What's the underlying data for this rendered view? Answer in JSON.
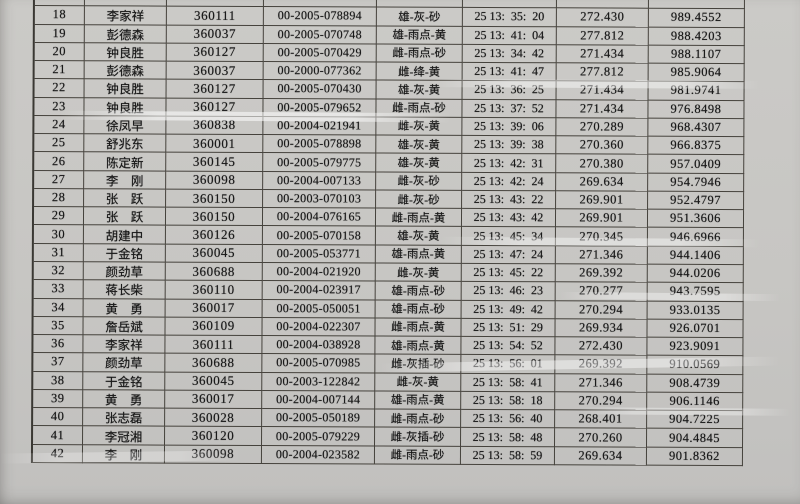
{
  "document": {
    "kind": "scanned race result sheet",
    "colors": {
      "paper": "#c8c7c4",
      "ink": "#191919",
      "table_border": "#45423c"
    },
    "table": {
      "first_visible_row_no": "18",
      "last_visible_row_no": "42",
      "rows": [
        [
          "18",
          "李家祥",
          "360111",
          "00-2005-078894",
          "雄-灰-砂",
          "25 13:  35:  20",
          "272.430",
          "989.4552"
        ],
        [
          "19",
          "彭德森",
          "360037",
          "00-2005-070748",
          "雄-雨点-黄",
          "25 13:  41:  04",
          "277.812",
          "988.4203"
        ],
        [
          "20",
          "钟良胜",
          "360127",
          "00-2005-070429",
          "雌-雨点-砂",
          "25 13:  34:  42",
          "271.434",
          "988.1107"
        ],
        [
          "21",
          "彭德森",
          "360037",
          "00-2000-077362",
          "雌-绛-黄",
          "25 13:  41:  47",
          "277.812",
          "985.9064"
        ],
        [
          "22",
          "钟良胜",
          "360127",
          "00-2005-070430",
          "雄-灰-黄",
          "25 13:  36:  25",
          "271.434",
          "981.9741"
        ],
        [
          "23",
          "钟良胜",
          "360127",
          "00-2005-079652",
          "雌-雨点-砂",
          "25 13:  37:  52",
          "271.434",
          "976.8498"
        ],
        [
          "24",
          "徐凤早",
          "360838",
          "00-2004-021941",
          "雌-灰-黄",
          "25 13:  39:  06",
          "270.289",
          "968.4307"
        ],
        [
          "25",
          "舒兆东",
          "360001",
          "00-2005-078898",
          "雄-灰-黄",
          "25 13:  39:  38",
          "270.360",
          "966.8375"
        ],
        [
          "26",
          "陈定新",
          "360145",
          "00-2005-079775",
          "雄-灰-黄",
          "25 13:  42:  31",
          "270.380",
          "957.0409"
        ],
        [
          "27",
          "李　刚",
          "360098",
          "00-2004-007133",
          "雌-灰-砂",
          "25 13:  42:  24",
          "269.634",
          "954.7946"
        ],
        [
          "28",
          "张　跃",
          "360150",
          "00-2003-070103",
          "雌-灰-砂",
          "25 13:  43:  22",
          "269.901",
          "952.4797"
        ],
        [
          "29",
          "张　跃",
          "360150",
          "00-2004-076165",
          "雌-雨点-黄",
          "25 13:  43:  42",
          "269.901",
          "951.3606"
        ],
        [
          "30",
          "胡建中",
          "360126",
          "00-2005-070158",
          "雄-灰-黄",
          "25 13:  45:  34",
          "270.345",
          "946.6966"
        ],
        [
          "31",
          "于金铭",
          "360045",
          "00-2005-053771",
          "雄-雨点-黄",
          "25 13:  47:  24",
          "271.346",
          "944.1406"
        ],
        [
          "32",
          "颜劲草",
          "360688",
          "00-2004-021920",
          "雌-灰-黄",
          "25 13:  45:  22",
          "269.392",
          "944.0206"
        ],
        [
          "33",
          "蒋长柴",
          "360110",
          "00-2004-023917",
          "雄-雨点-砂",
          "25 13:  46:  23",
          "270.277",
          "943.7595"
        ],
        [
          "34",
          "黄　勇",
          "360017",
          "00-2005-050051",
          "雄-雨点-砂",
          "25 13:  49:  42",
          "270.294",
          "933.0135"
        ],
        [
          "35",
          "詹岳斌",
          "360109",
          "00-2004-022307",
          "雌-雨点-黄",
          "25 13:  51:  29",
          "269.934",
          "926.0701"
        ],
        [
          "36",
          "李家祥",
          "360111",
          "00-2004-038928",
          "雄-雨点-黄",
          "25 13:  54:  52",
          "272.430",
          "923.9091"
        ],
        [
          "37",
          "颜劲草",
          "360688",
          "00-2005-070985",
          "雌-灰插-砂",
          "25 13:  56:  01",
          "269.392",
          "910.0569"
        ],
        [
          "38",
          "于金铭",
          "360045",
          "00-2003-122842",
          "雌-灰-黄",
          "25 13:  58:  41",
          "271.346",
          "908.4739"
        ],
        [
          "39",
          "黄　勇",
          "360017",
          "00-2004-007144",
          "雄-雨点-黄",
          "25 13:  58:  18",
          "270.294",
          "906.1146"
        ],
        [
          "40",
          "张志磊",
          "360028",
          "00-2005-050189",
          "雌-雨点-砂",
          "25 13:  56:  40",
          "268.401",
          "904.7225"
        ],
        [
          "41",
          "李冠湘",
          "360120",
          "00-2005-079229",
          "雌-灰插-砂",
          "25 13:  58:  48",
          "270.260",
          "904.4845"
        ],
        [
          "42",
          "李　刚",
          "360098",
          "00-2004-023582",
          "雌-雨点-砂",
          "25 13:  58:  59",
          "269.634",
          "901.8362"
        ]
      ]
    }
  }
}
